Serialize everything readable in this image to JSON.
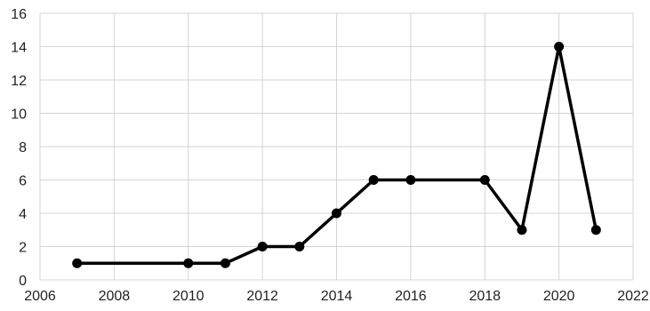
{
  "chart_data": {
    "type": "line",
    "title": "",
    "xlabel": "",
    "ylabel": "",
    "xlim": [
      2006,
      2022
    ],
    "ylim": [
      0,
      16
    ],
    "x_ticks": [
      2006,
      2008,
      2010,
      2012,
      2014,
      2016,
      2018,
      2020,
      2022
    ],
    "y_ticks": [
      0,
      2,
      4,
      6,
      8,
      10,
      12,
      14,
      16
    ],
    "grid": true,
    "legend": "none",
    "series": [
      {
        "color": "#000000",
        "x": [
          2007,
          2010,
          2011,
          2012,
          2013,
          2014,
          2015,
          2016,
          2018,
          2019,
          2020,
          2021
        ],
        "y": [
          1,
          1,
          1,
          2,
          2,
          4,
          6,
          6,
          6,
          3,
          14,
          3
        ]
      }
    ]
  }
}
